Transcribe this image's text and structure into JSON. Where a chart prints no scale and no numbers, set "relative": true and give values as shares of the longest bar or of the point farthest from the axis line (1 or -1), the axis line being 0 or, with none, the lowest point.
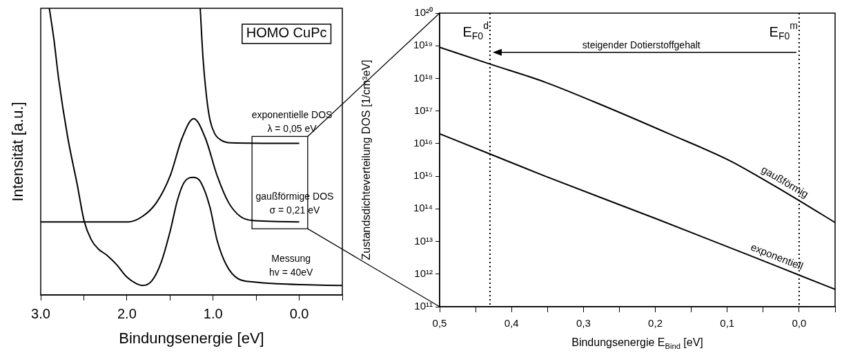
{
  "chart_data": [
    {
      "type": "line",
      "xlabel": "Bindungsenergie [eV]",
      "ylabel": "Intensität [a.u.]",
      "relative": true,
      "marker": "none",
      "line_style": "solid",
      "xlim": [
        3.0,
        -0.5
      ],
      "xticks": [
        {
          "value": 3.0,
          "label": "3.0"
        },
        {
          "value": 2.5,
          "label": null
        },
        {
          "value": 2.0,
          "label": "2.0"
        },
        {
          "value": 1.5,
          "label": null
        },
        {
          "value": 1.0,
          "label": "1.0"
        },
        {
          "value": 0.5,
          "label": null
        },
        {
          "value": 0.0,
          "label": "0.0"
        },
        {
          "value": -0.5,
          "label": null
        }
      ],
      "series": [
        {
          "color": "#000000",
          "x": [
            2.9,
            2.847,
            2.793,
            2.685,
            2.577,
            2.496,
            2.414,
            2.333,
            2.225,
            2.117,
            2.009,
            1.9,
            1.819,
            1.711,
            1.603,
            1.495,
            1.414,
            1.333,
            1.225,
            1.144,
            1.036,
            0.955,
            0.846,
            0.711,
            0.521,
            0.251,
            -0.019,
            -0.5
          ],
          "values": [
            1.0,
            0.892,
            0.756,
            0.547,
            0.386,
            0.258,
            0.193,
            0.161,
            0.137,
            0.105,
            0.065,
            0.041,
            0.033,
            0.049,
            0.113,
            0.226,
            0.33,
            0.394,
            0.41,
            0.394,
            0.306,
            0.193,
            0.105,
            0.057,
            0.045,
            0.039,
            0.036,
            0.033
          ]
        },
        {
          "color": "#000000",
          "x": [
            3.0,
            1.981,
            1.819,
            1.657,
            1.495,
            1.36,
            1.225,
            1.089,
            0.955,
            0.819,
            0.684,
            0.549,
            0.0
          ],
          "values": [
            0.255,
            0.255,
            0.274,
            0.322,
            0.418,
            0.547,
            0.615,
            0.547,
            0.418,
            0.322,
            0.274,
            0.26,
            0.255
          ]
        },
        {
          "color": "#000000",
          "x": [
            1.149,
            1.117,
            1.076,
            1.036,
            0.981,
            0.9,
            0.792,
            0.0
          ],
          "values": [
            1.0,
            0.828,
            0.692,
            0.611,
            0.563,
            0.539,
            0.531,
            0.529
          ]
        }
      ],
      "annotations": [
        "HOMO CuPc",
        "exponentielle DOS",
        "λ = 0,05 eV",
        "gaußförmige DOS",
        "σ = 0,21 eV",
        "Messung",
        "hv = 40eV"
      ]
    },
    {
      "type": "line",
      "xlabel": "Bindungsenergie E$_{Bind}$ [eV]",
      "ylabel": "Zustandsdichteverteilung DOS [1/cm³eV]",
      "log": "y",
      "marker": "none",
      "line_style": "solid",
      "xlim": [
        0.5,
        -0.05
      ],
      "xticks": [
        {
          "value": 0.5,
          "label": "0,5"
        },
        {
          "value": 0.45,
          "label": null
        },
        {
          "value": 0.4,
          "label": "0,4"
        },
        {
          "value": 0.35,
          "label": null
        },
        {
          "value": 0.3,
          "label": "0,3"
        },
        {
          "value": 0.25,
          "label": null
        },
        {
          "value": 0.2,
          "label": "0,2"
        },
        {
          "value": 0.15,
          "label": null
        },
        {
          "value": 0.1,
          "label": "0,1"
        },
        {
          "value": 0.05,
          "label": null
        },
        {
          "value": 0.0,
          "label": "0,0"
        },
        {
          "value": -0.05,
          "label": null
        }
      ],
      "ylim": [
        100000000000.0,
        1e+20
      ],
      "yticks": [
        {
          "value": 100000000000.0,
          "label": "10¹¹"
        },
        {
          "value": 1000000000000.0,
          "label": "10¹²"
        },
        {
          "value": 10000000000000.0,
          "label": "10¹³"
        },
        {
          "value": 100000000000000.0,
          "label": "10¹⁴"
        },
        {
          "value": 1000000000000000.0,
          "label": "10¹⁵"
        },
        {
          "value": 1e+16,
          "label": "10¹⁶"
        },
        {
          "value": 1e+17,
          "label": "10¹⁷"
        },
        {
          "value": 1e+18,
          "label": "10¹⁸"
        },
        {
          "value": 1e+19,
          "label": "10¹⁹"
        },
        {
          "value": 1e+20,
          "label": "10²⁰"
        }
      ],
      "series": [
        {
          "name": "gaußförmig",
          "color": "#000000",
          "x": [
            0.5,
            0.431,
            0.353,
            0.267,
            0.181,
            0.095,
            0.052,
            0.0,
            -0.05
          ],
          "values": [
            9e+18,
            2.8e+18,
            7.6e+17,
            1.3e+17,
            2e+16,
            2900000000000000.0,
            850000000000000.0,
            180000000000000.0,
            38000000000000.0
          ]
        },
        {
          "name": "exponentiell",
          "color": "#000000",
          "x": [
            0.5,
            0.431,
            0.353,
            0.198,
            0.071,
            0.0,
            -0.05
          ],
          "values": [
            2e+16,
            4900000000000000.0,
            1000000000000000.0,
            49000000000000.0,
            3900000000000.0,
            930000000000.0,
            340000000000.0
          ]
        }
      ],
      "ref_lines": [
        {
          "axis": "x",
          "value": 0.43,
          "label": "E$_{F0}$$^{d}$",
          "line_style": "dotted"
        },
        {
          "axis": "x",
          "value": 0.0,
          "label": "E$_{F0}$$^{m}$",
          "line_style": "dotted"
        }
      ],
      "annotations": [
        "steigender Dotierstoffgehalt"
      ]
    }
  ]
}
